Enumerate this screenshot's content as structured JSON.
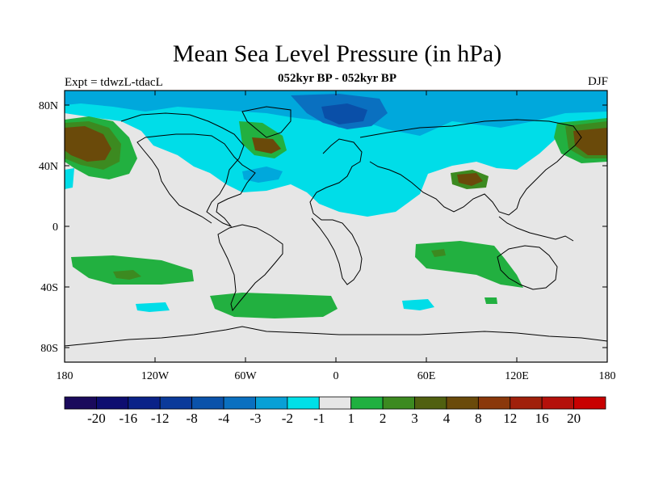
{
  "header": {
    "title": "Mean Sea Level Pressure (in hPa)",
    "subtitle": "052kyr BP - 052kyr BP",
    "left_label": "Expt = tdwzL-tdacL",
    "right_label": "DJF"
  },
  "axes": {
    "lat_labels": [
      "80N",
      "40N",
      "0",
      "40S",
      "80S"
    ],
    "lon_labels": [
      "180",
      "120W",
      "60W",
      "0",
      "60E",
      "120E",
      "180"
    ]
  },
  "colorbar": {
    "colors": [
      "#1a0a5c",
      "#0d0d70",
      "#0a2288",
      "#0a3a9a",
      "#0a52aa",
      "#0a70c0",
      "#08a0d6",
      "#00e0e8",
      "#e6e6e6",
      "#20b040",
      "#3c8a20",
      "#506010",
      "#6a4a0a",
      "#8a380a",
      "#a0200a",
      "#b4100a",
      "#c80000"
    ],
    "labels": [
      "-20",
      "-16",
      "-12",
      "-8",
      "-4",
      "-3",
      "-2",
      "-1",
      "1",
      "2",
      "3",
      "4",
      "8",
      "12",
      "16",
      "20"
    ]
  },
  "colors": {
    "background_field": "#e6e6e6",
    "neg_light": "#00dde8",
    "neg_mid": "#00a8dc",
    "neg_strong": "#0a70c0",
    "neg_darker": "#0a4fa8",
    "pos_light": "#22b040",
    "pos_mid": "#3c8a20",
    "pos_strong": "#6a4a0a"
  }
}
